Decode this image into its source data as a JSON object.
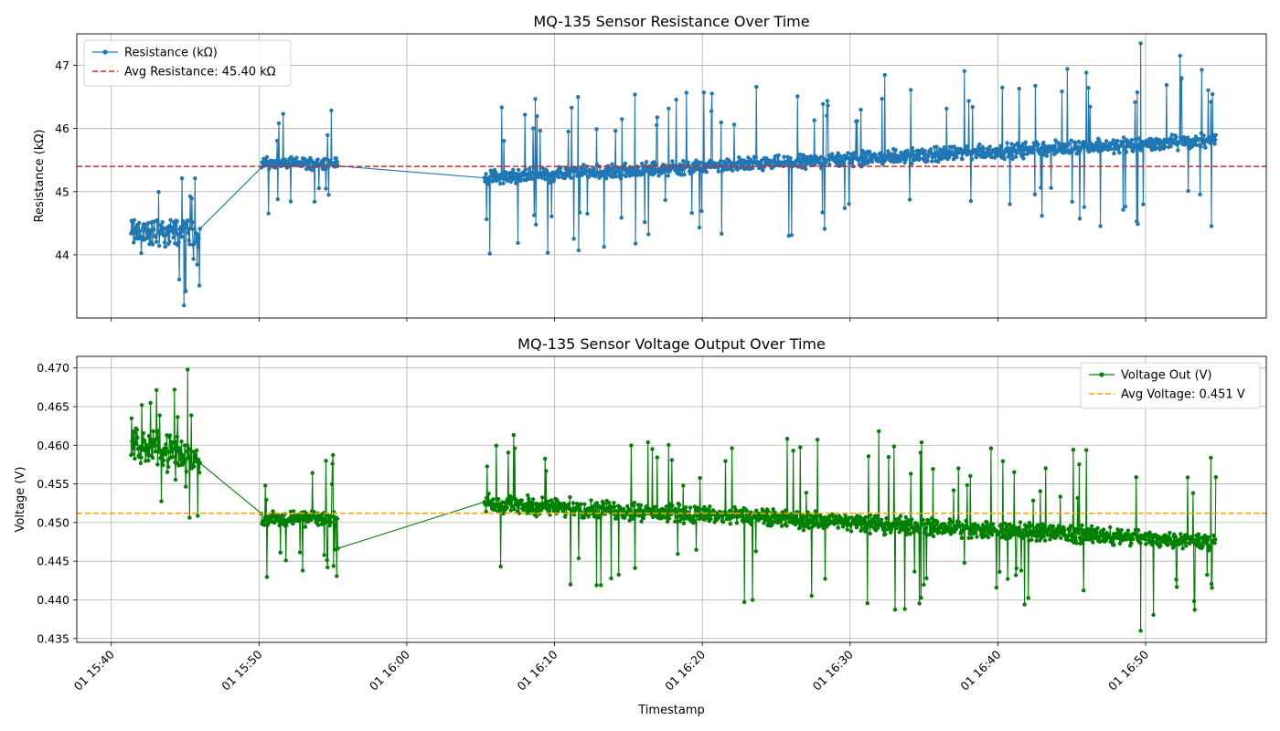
{
  "x_ticks": [
    "01 15:40",
    "01 15:50",
    "01 16:00",
    "01 16:10",
    "01 16:20",
    "01 16:30",
    "01 16:40",
    "01 16:50"
  ],
  "xlabel": "Timestamp",
  "chart_data": [
    {
      "type": "line",
      "title": "MQ-135 Sensor Resistance Over Time",
      "xlabel": "",
      "ylabel": "Resistance (kΩ)",
      "ylim": [
        43.0,
        47.5
      ],
      "yticks": [
        44,
        45,
        46,
        47
      ],
      "xlim": [
        "15:37:40",
        "16:58:10"
      ],
      "x_range_minutes": [
        -2.33,
        78.17
      ],
      "grid": true,
      "legend_position": "top-left",
      "color": "#1f77b4",
      "series": [
        {
          "name": "Resistance (kΩ)",
          "segments": [
            {
              "start": "15:41:20",
              "end": "15:46:00",
              "mean": 44.35,
              "trend": 0.005,
              "band": 0.28,
              "spike": 0.09,
              "spike_amp": 0.9
            },
            {
              "start": "15:50:10",
              "end": "15:55:20",
              "mean": 45.45,
              "trend": 0.0,
              "band": 0.11,
              "spike": 0.11,
              "spike_amp": 0.9
            },
            {
              "start": "16:05:15",
              "end": "16:54:45",
              "mean": 45.22,
              "trend": 0.012,
              "band": 0.14,
              "spike": 0.07,
              "spike_amp": 1.3
            }
          ],
          "spike_examples": {
            "min": 43.2,
            "max": 47.35
          }
        }
      ],
      "reference_line": {
        "label": "Avg Resistance: 45.40 kΩ",
        "value": 45.4,
        "color": "#d62728",
        "style": "dashed"
      }
    },
    {
      "type": "line",
      "title": "MQ-135 Sensor Voltage Output Over Time",
      "xlabel": "Timestamp",
      "ylabel": "Voltage (V)",
      "ylim": [
        0.4345,
        0.4715
      ],
      "yticks": [
        0.435,
        0.44,
        0.445,
        0.45,
        0.455,
        0.46,
        0.465,
        0.47
      ],
      "xlim": [
        "15:37:40",
        "16:58:10"
      ],
      "x_range_minutes": [
        -2.33,
        78.17
      ],
      "grid": true,
      "legend_position": "top-right",
      "color": "#008000",
      "series": [
        {
          "name": "Voltage Out (V)",
          "segments": [
            {
              "start": "15:41:20",
              "end": "15:46:00",
              "mean": 0.4602,
              "trend": -0.0004,
              "band": 0.0028,
              "spike": 0.09,
              "spike_amp": 0.008
            },
            {
              "start": "15:50:10",
              "end": "15:55:20",
              "mean": 0.4505,
              "trend": 0.0,
              "band": 0.0012,
              "spike": 0.11,
              "spike_amp": 0.008
            },
            {
              "start": "16:05:15",
              "end": "16:54:45",
              "mean": 0.4525,
              "trend": -0.0001,
              "band": 0.0014,
              "spike": 0.07,
              "spike_amp": 0.011
            }
          ],
          "spike_examples": {
            "min": 0.436,
            "max": 0.4698
          }
        }
      ],
      "reference_line": {
        "label": "Avg Voltage: 0.451 V",
        "value": 0.4512,
        "color": "#ffa500",
        "style": "dashed"
      }
    }
  ]
}
